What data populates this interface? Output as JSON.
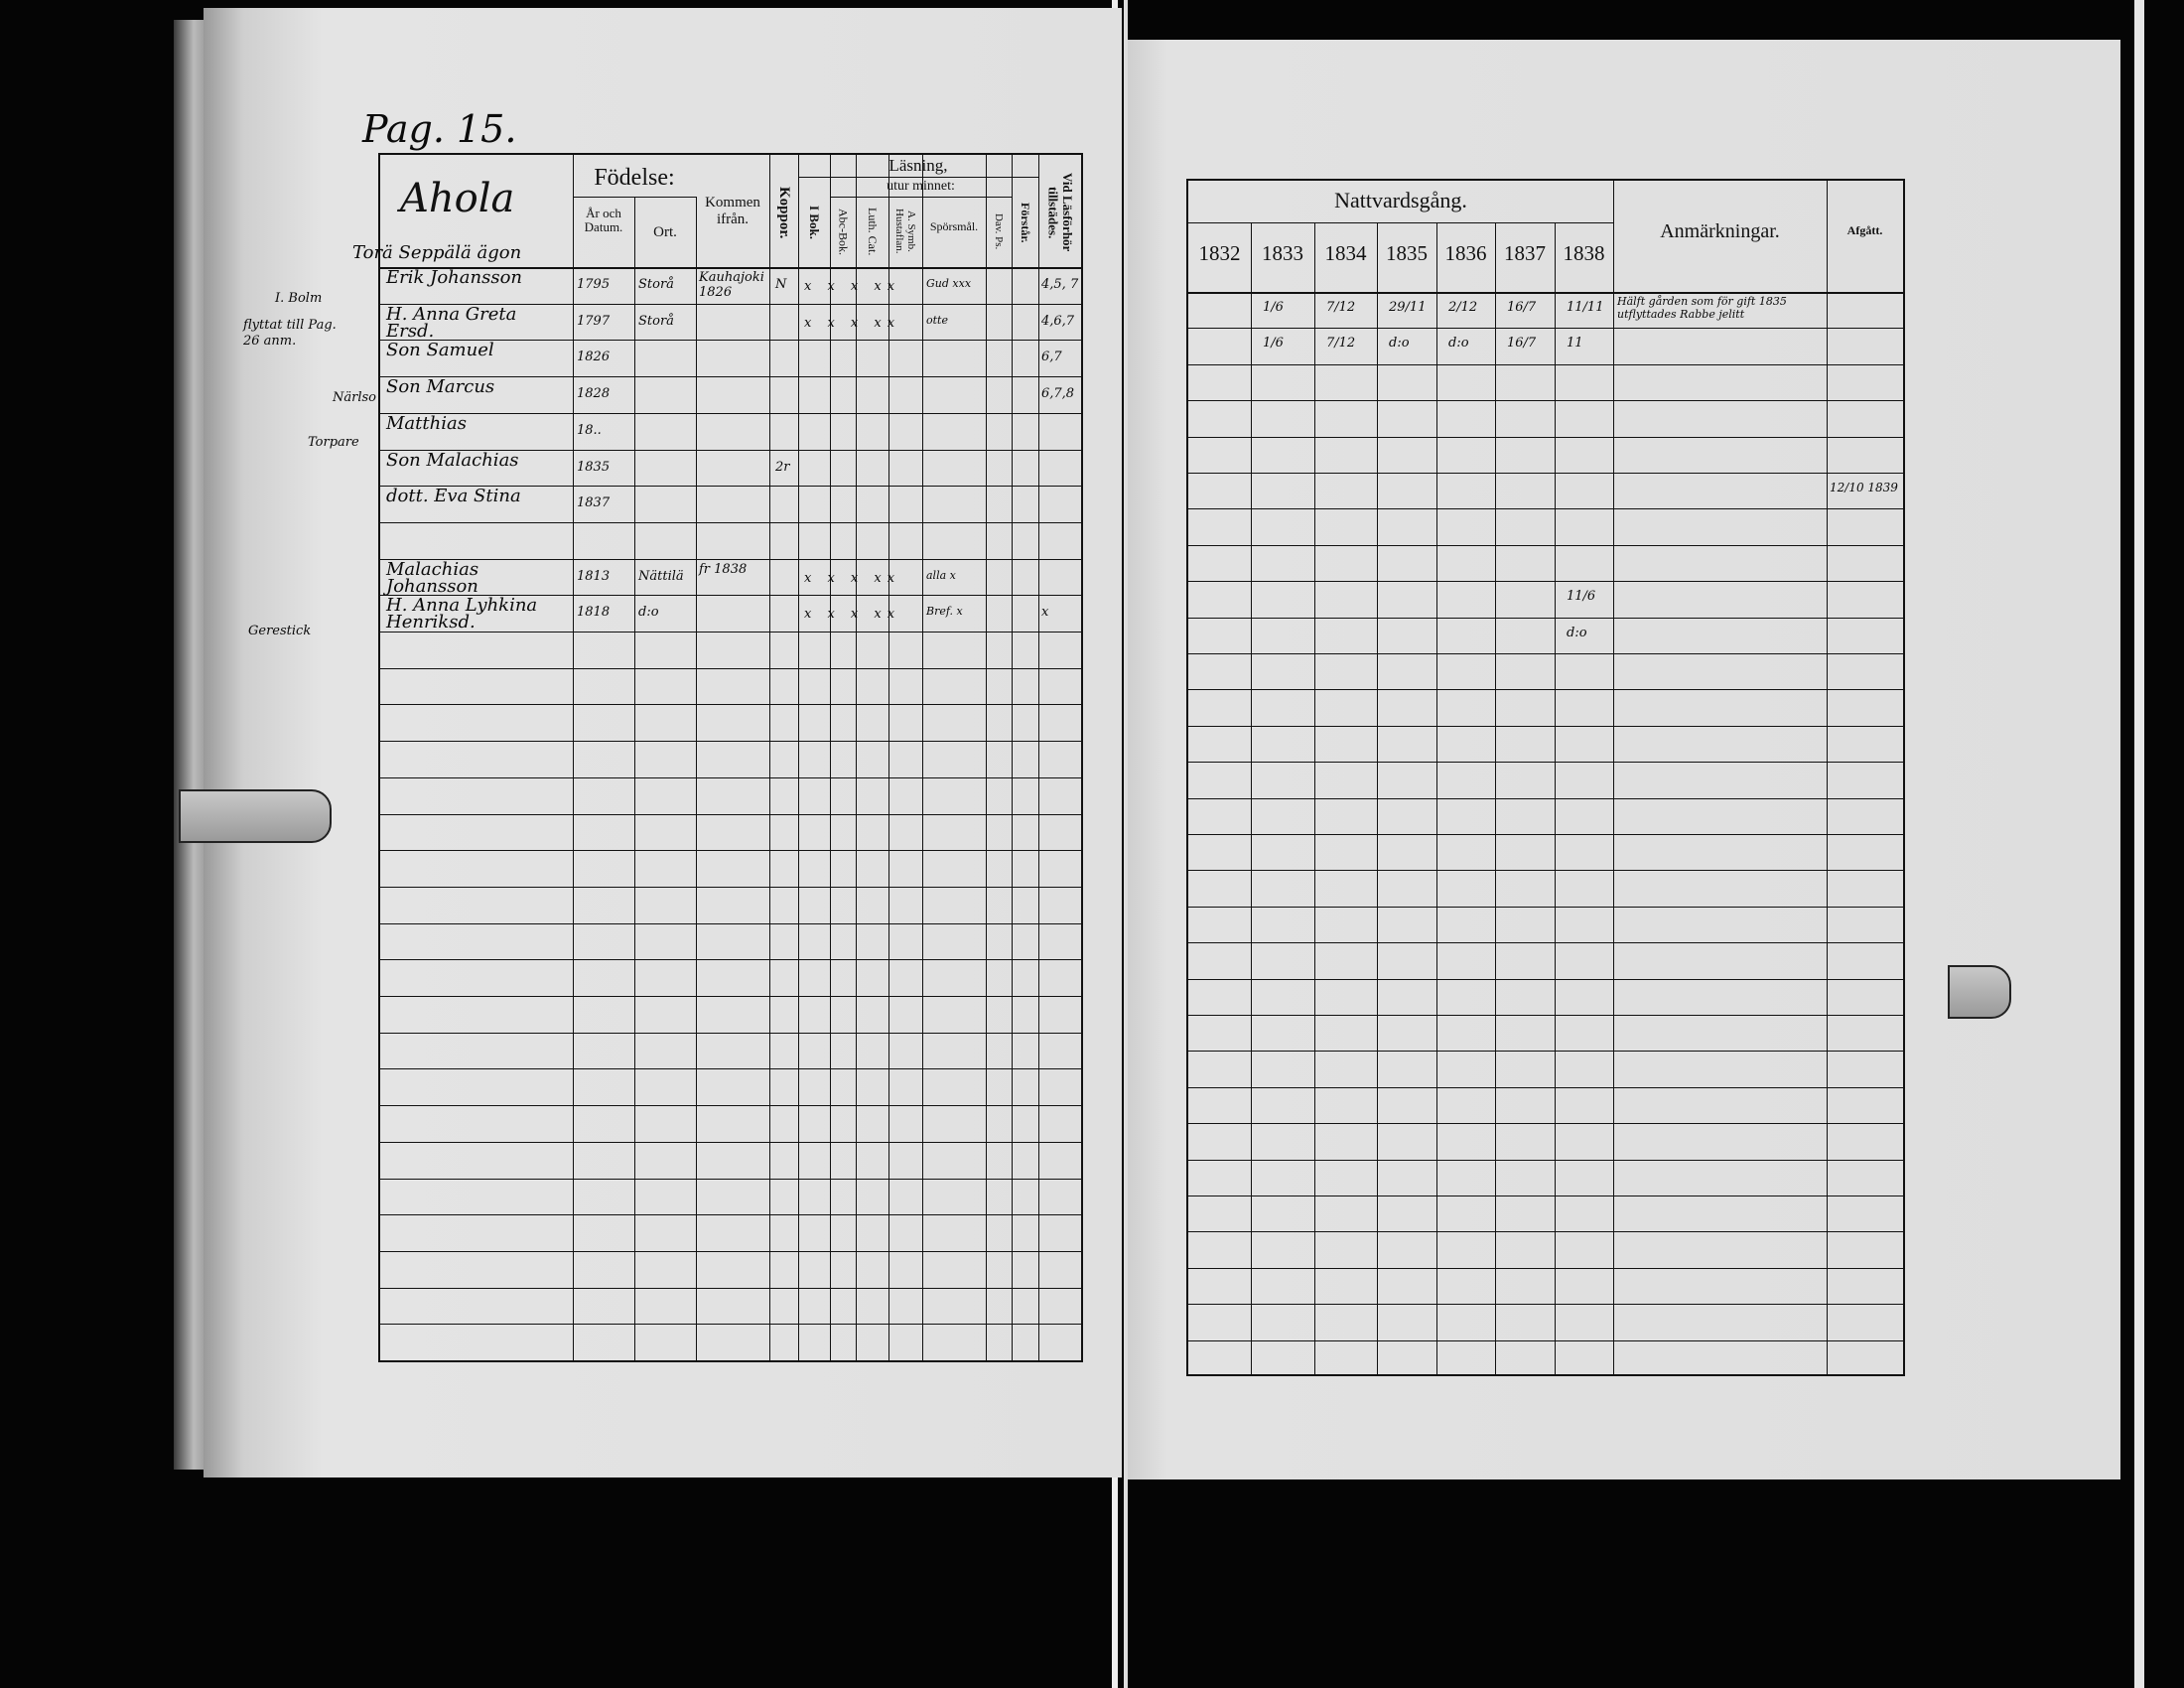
{
  "left_page": {
    "page_label": "Pag. 15.",
    "place_name": "Ahola",
    "headers": {
      "fodelse": "Födelse:",
      "ar_och_datum": "År och Datum.",
      "ort": "Ort.",
      "kommen_ifran": "Kommen ifrån.",
      "koppor": "Koppor.",
      "lasning": "Läsning,",
      "i_bok": "I Bok.",
      "utur_minnet": "utur minnet:",
      "abc_bok": "Abc-Bok.",
      "luth_cat": "Luth. Cat.",
      "symb": "A. Symb. Hustaflan.",
      "sporsmal": "Spörsmål.",
      "dav_ps": "Dav. Ps.",
      "forstar": "Förstår.",
      "vid_lasforhor": "Vid Läsförhör tillstädes."
    },
    "subtitle": "Torä Seppälä ägon",
    "margin_notes": [
      "I. Bolm",
      "flyttat till Pag. 26 anm.",
      "Närlso",
      "Torpare",
      "Gerestick"
    ],
    "entries": [
      {
        "name": "Erik Johansson",
        "birth": "1795",
        "place": "Storå",
        "from": "Kauhajoki 1826",
        "koppor": "N",
        "marks": "x x x xx",
        "sporsmal": "Gud xxx",
        "vid": "4,5, 7"
      },
      {
        "name": "H. Anna Greta Ersd.",
        "birth": "1797",
        "place": "Storå",
        "from": "",
        "koppor": "",
        "marks": "x x x xx",
        "sporsmal": "otte",
        "vid": "4,6,7"
      },
      {
        "name": "Son Samuel",
        "birth": "1826",
        "place": "",
        "from": "",
        "koppor": "",
        "marks": "",
        "sporsmal": "",
        "vid": "6,7"
      },
      {
        "name": "Son Marcus",
        "birth": "1828",
        "place": "",
        "from": "",
        "koppor": "",
        "marks": "",
        "sporsmal": "",
        "vid": "6,7,8"
      },
      {
        "name": "Matthias",
        "birth": "18..",
        "place": "",
        "from": "",
        "koppor": "",
        "marks": "",
        "sporsmal": "",
        "vid": ""
      },
      {
        "name": "Son Malachias",
        "birth": "1835",
        "place": "",
        "from": "",
        "koppor": "2r",
        "marks": "",
        "sporsmal": "",
        "vid": ""
      },
      {
        "name": "dott. Eva Stina",
        "birth": "1837",
        "place": "",
        "from": "",
        "koppor": "",
        "marks": "",
        "sporsmal": "",
        "vid": ""
      },
      {
        "name": "",
        "birth": "",
        "place": "",
        "from": "",
        "koppor": "",
        "marks": "",
        "sporsmal": "",
        "vid": ""
      },
      {
        "name": "Malachias Johansson",
        "birth": "1813",
        "place": "Nättilä",
        "from": "fr 1838",
        "koppor": "",
        "marks": "x x x xx",
        "sporsmal": "alla x",
        "vid": ""
      },
      {
        "name": "H. Anna Lyhkina Henriksd.",
        "birth": "1818",
        "place": "d:o",
        "from": "",
        "koppor": "",
        "marks": "x x x xx",
        "sporsmal": "Bref. x",
        "vid": "x"
      }
    ]
  },
  "right_page": {
    "headers": {
      "nattvardsgang": "Nattvardsgång.",
      "years": [
        "1832",
        "1833",
        "1834",
        "1835",
        "1836",
        "1837",
        "1838"
      ],
      "anmarkningar": "Anmärkningar.",
      "afgatt": "Afgått."
    },
    "entries": [
      {
        "dates": [
          "",
          "1/6",
          "7/12",
          "29/11",
          "2/12",
          "16/7",
          "11/11"
        ],
        "note": "Hälft gården som för gift 1835 utflyttades Rabbe jelitt",
        "afgatt": ""
      },
      {
        "dates": [
          "",
          "1/6",
          "7/12",
          "d:o",
          "d:o",
          "16/7",
          "11"
        ],
        "note": "",
        "afgatt": ""
      },
      {
        "dates": [
          "",
          "",
          "",
          "",
          "",
          "",
          ""
        ],
        "note": "",
        "afgatt": ""
      },
      {
        "dates": [
          "",
          "",
          "",
          "",
          "",
          "",
          ""
        ],
        "note": "",
        "afgatt": ""
      },
      {
        "dates": [
          "",
          "",
          "",
          "",
          "",
          "",
          ""
        ],
        "note": "",
        "afgatt": ""
      },
      {
        "dates": [
          "",
          "",
          "",
          "",
          "",
          "",
          ""
        ],
        "note": "",
        "afgatt": "12/10 1839"
      },
      {
        "dates": [
          "",
          "",
          "",
          "",
          "",
          "",
          ""
        ],
        "note": "",
        "afgatt": ""
      },
      {
        "dates": [
          "",
          "",
          "",
          "",
          "",
          "",
          ""
        ],
        "note": "",
        "afgatt": ""
      },
      {
        "dates": [
          "",
          "",
          "",
          "",
          "",
          "",
          "11/6"
        ],
        "note": "",
        "afgatt": ""
      },
      {
        "dates": [
          "",
          "",
          "",
          "",
          "",
          "",
          "d:o"
        ],
        "note": "",
        "afgatt": ""
      }
    ]
  }
}
